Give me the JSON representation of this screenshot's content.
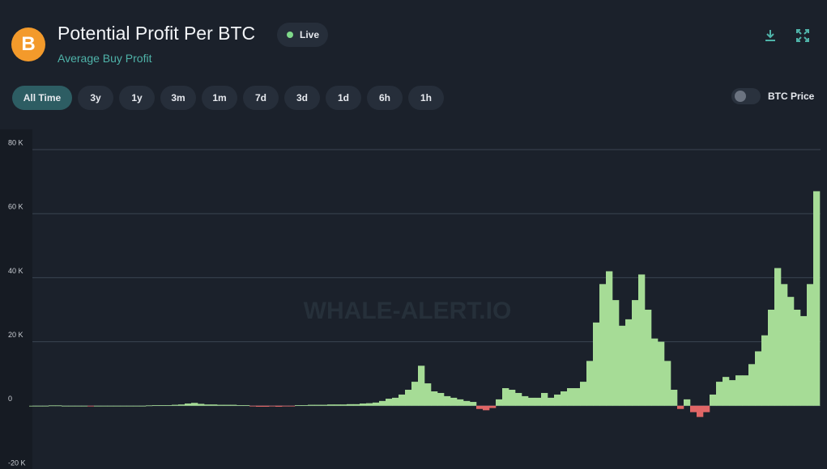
{
  "header": {
    "title": "Potential Profit Per BTC",
    "subtitle": "Average Buy Profit",
    "status": "Live",
    "icon": "B"
  },
  "ranges": [
    {
      "label": "All Time",
      "selected": true
    },
    {
      "label": "3y",
      "selected": false
    },
    {
      "label": "1y",
      "selected": false
    },
    {
      "label": "3m",
      "selected": false
    },
    {
      "label": "1m",
      "selected": false
    },
    {
      "label": "7d",
      "selected": false
    },
    {
      "label": "3d",
      "selected": false
    },
    {
      "label": "1d",
      "selected": false
    },
    {
      "label": "6h",
      "selected": false
    },
    {
      "label": "1h",
      "selected": false
    }
  ],
  "toggle": {
    "label": "BTC Price",
    "on": false
  },
  "chart_data": {
    "type": "bar",
    "watermark": "WHALE-ALERT.IO",
    "positive_color": "#a6dc96",
    "negative_color": "#e06666",
    "ylim": [
      -20000,
      80000
    ],
    "yticks": [
      {
        "value": -20000,
        "label": "-20 K"
      },
      0,
      {
        "value": 20000,
        "label": "20 K"
      },
      {
        "value": 40000,
        "label": "40 K"
      },
      {
        "value": 60000,
        "label": "60 K"
      },
      {
        "value": 80000,
        "label": "80 K"
      }
    ],
    "grid": true,
    "values": [
      0,
      0,
      0,
      100,
      100,
      0,
      0,
      0,
      0,
      -100,
      0,
      0,
      0,
      0,
      0,
      0,
      0,
      0,
      100,
      200,
      200,
      200,
      300,
      400,
      700,
      900,
      600,
      400,
      400,
      300,
      300,
      300,
      200,
      200,
      -200,
      -300,
      -300,
      -200,
      -300,
      -200,
      -100,
      200,
      200,
      300,
      300,
      300,
      400,
      400,
      400,
      500,
      500,
      700,
      800,
      1000,
      1500,
      2200,
      2500,
      3500,
      5000,
      7500,
      12500,
      7000,
      4500,
      4000,
      3000,
      2500,
      2000,
      1500,
      1200,
      -1000,
      -1400,
      -700,
      2000,
      5500,
      5000,
      4000,
      3000,
      2500,
      2500,
      4000,
      2500,
      3500,
      4500,
      5500,
      5500,
      7500,
      14000,
      26000,
      38000,
      42000,
      33000,
      25000,
      27000,
      33000,
      41000,
      30000,
      21000,
      20000,
      14000,
      5000,
      -1000,
      2000,
      -2000,
      -3500,
      -2000,
      3500,
      7500,
      9000,
      8000,
      9500,
      9500,
      13000,
      17000,
      22000,
      30000,
      43000,
      38000,
      34000,
      30000,
      28000,
      38000,
      67000
    ]
  }
}
